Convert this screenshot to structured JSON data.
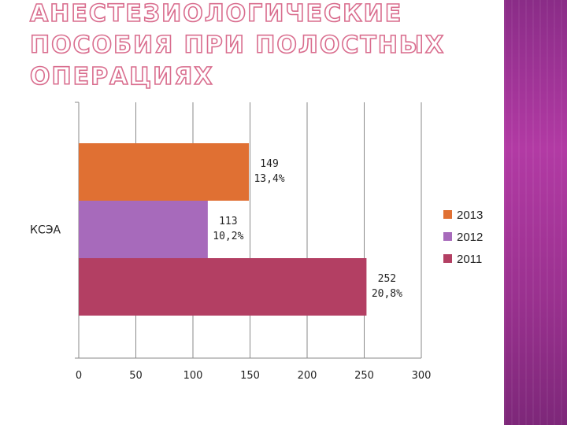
{
  "slide": {
    "title_lines": [
      "АНЕСТЕЗИОЛОГИЧЕСКИЕ",
      "ПОСОБИЯ ПРИ ПОЛОСТНЫХ",
      "ОПЕРАЦИЯХ"
    ],
    "title_color": "#d96d8e",
    "accent_band_color": "#9a318f"
  },
  "chart_data": {
    "type": "bar",
    "orientation": "horizontal",
    "categories": [
      "КСЭА"
    ],
    "series": [
      {
        "name": "2013",
        "values": [
          149
        ],
        "label_lines": [
          "149",
          "13,4%"
        ],
        "color": "#e07033"
      },
      {
        "name": "2012",
        "values": [
          113
        ],
        "label_lines": [
          "113",
          "10,2%"
        ],
        "color": "#a76abb"
      },
      {
        "name": "2011",
        "values": [
          252
        ],
        "label_lines": [
          "252",
          "20,8%"
        ],
        "color": "#b33f63"
      }
    ],
    "xlim": [
      0,
      300
    ],
    "xticks": [
      "0",
      "50",
      "100",
      "150",
      "200",
      "250",
      "300"
    ],
    "grid": true,
    "legend_position": "right"
  }
}
